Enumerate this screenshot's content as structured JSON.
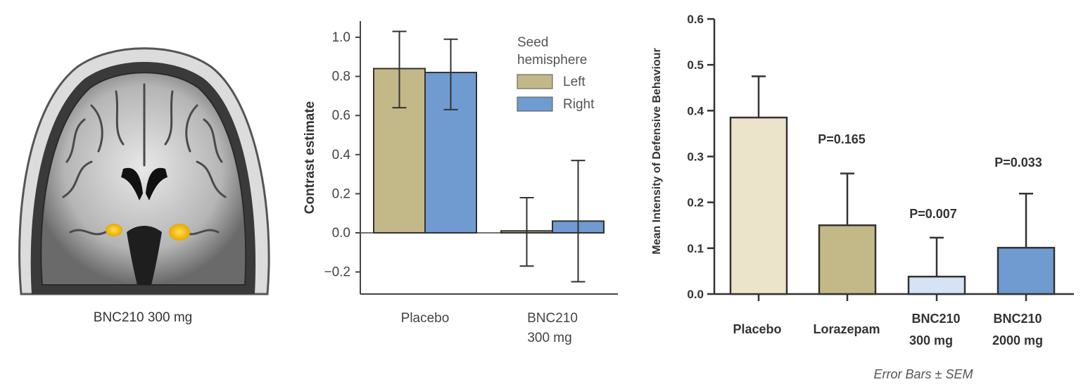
{
  "brain_panel": {
    "caption": "BNC210 300 mg"
  },
  "chart_data": [
    {
      "type": "bar",
      "ylabel": "Contrast estimate",
      "xlabel": "",
      "ylim": [
        -0.3,
        1.1
      ],
      "yticks": [
        -0.2,
        0.0,
        0.2,
        0.4,
        0.6,
        0.8,
        1.0
      ],
      "ytick_labels": [
        "−0.2",
        "0.0",
        "0.2",
        "0.4",
        "0.6",
        "0.8",
        "1.0"
      ],
      "categories": [
        {
          "line1": "Placebo",
          "line2": ""
        },
        {
          "line1": "BNC210",
          "line2": "300 mg"
        }
      ],
      "legend": {
        "title_line1": "Seed",
        "title_line2": "hemisphere",
        "placement": "top-right"
      },
      "series": [
        {
          "name": "Left",
          "color": "#c3b888",
          "values": [
            0.84,
            0.01
          ],
          "err_low": [
            0.64,
            -0.17
          ],
          "err_high": [
            1.03,
            0.18
          ]
        },
        {
          "name": "Right",
          "color": "#6f9bd0",
          "values": [
            0.82,
            0.06
          ],
          "err_low": [
            0.63,
            -0.25
          ],
          "err_high": [
            0.99,
            0.37
          ]
        }
      ],
      "grid": false
    },
    {
      "type": "bar",
      "ylabel": "Mean Intensity of Defensive Behaviour",
      "xlabel": "",
      "ylim": [
        0.0,
        0.6
      ],
      "yticks": [
        0.0,
        0.1,
        0.2,
        0.3,
        0.4,
        0.5,
        0.6
      ],
      "ytick_labels": [
        "0.0",
        "0.1",
        "0.2",
        "0.3",
        "0.4",
        "0.5",
        "0.6"
      ],
      "categories": [
        {
          "line1": "Placebo",
          "line2": ""
        },
        {
          "line1": "Lorazepam",
          "line2": ""
        },
        {
          "line1": "BNC210",
          "line2": "300 mg"
        },
        {
          "line1": "BNC210",
          "line2": "2000 mg"
        }
      ],
      "values": [
        0.385,
        0.15,
        0.038,
        0.101
      ],
      "errors": [
        0.09,
        0.113,
        0.085,
        0.118
      ],
      "colors": [
        "#ece4ca",
        "#c3b888",
        "#d5e3f4",
        "#6f9bd0"
      ],
      "annotations": [
        "",
        "P=0.165",
        "P=0.007",
        "P=0.033"
      ],
      "footnote": "Error Bars ± SEM",
      "grid": false
    }
  ]
}
